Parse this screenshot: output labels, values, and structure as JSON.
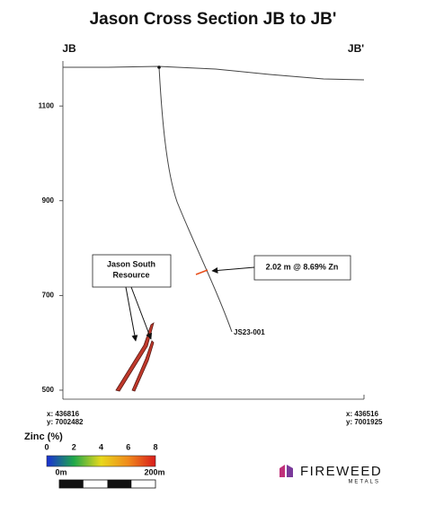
{
  "title": "Jason Cross Section JB to JB'",
  "section_ends": {
    "left": "JB",
    "right": "JB'"
  },
  "elevation_axis": {
    "range": [
      481,
      1195
    ],
    "ticks": [
      500,
      700,
      900,
      1100
    ]
  },
  "drillhole": {
    "label": "JS23-001"
  },
  "callouts": {
    "intercept": "2.02 m @ 8.69% Zn",
    "resource": [
      "Jason South",
      "Resource"
    ]
  },
  "coordinates": {
    "left": {
      "x": "x: 436816",
      "y": "y: 7002482"
    },
    "right": {
      "x": "x: 436516",
      "y": "y: 7001925"
    }
  },
  "legend": {
    "title": "Zinc (%)",
    "range": [
      0,
      8
    ],
    "ticks": [
      0,
      2,
      4,
      6,
      8
    ]
  },
  "scale_bar": {
    "start": "0m",
    "end": "200m"
  },
  "logo": {
    "name": "FIREWEED",
    "subtitle": "METALS"
  }
}
